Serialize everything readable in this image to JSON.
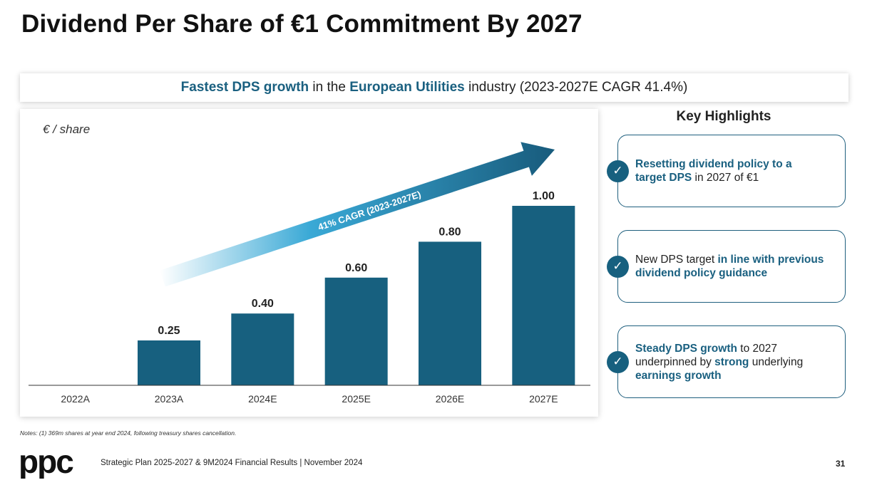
{
  "page": {
    "title": "Dividend Per Share of €1 Commitment By 2027",
    "banner": {
      "part1": "Fastest DPS growth",
      "part2": " in the ",
      "part3": "European Utilities",
      "part4": " industry (2023-2027E CAGR 41.4%)"
    },
    "notes": "Notes: (1) 369m shares at year end 2024, following treasury shares cancellation.",
    "footer": "Strategic Plan 2025-2027 & 9M2024 Financial Results | November 2024",
    "page_number": "31",
    "logo_text": "ppc"
  },
  "highlights": {
    "title": "Key Highlights",
    "check_glyph": "✓",
    "card1": {
      "b1": "Resetting dividend policy to a",
      "b2": "target DPS",
      "t1": " in 2027 of €1"
    },
    "card2": {
      "t1": "New DPS target ",
      "b1": "in line with previous",
      "b2": "dividend policy guidance"
    },
    "card3": {
      "b1": "Steady DPS growth",
      "t1": " to 2027",
      "t2": "underpinned by ",
      "b2": "strong",
      "t3": " underlying",
      "b3": "earnings growth"
    }
  },
  "chart_data": {
    "type": "bar",
    "title": "",
    "ylabel": "€ / share",
    "xlabel": "",
    "categories": [
      "2022A",
      "2023A",
      "2024E",
      "2025E",
      "2026E",
      "2027E"
    ],
    "values": [
      null,
      0.25,
      0.4,
      0.6,
      0.8,
      1.0
    ],
    "value_labels": [
      "",
      "0.25",
      "0.40",
      "0.60",
      "0.80",
      "1.00"
    ],
    "ylim": [
      0,
      1.0
    ],
    "grid": false,
    "annotation": "41% CAGR (2023-2027E)",
    "colors": {
      "bar": "#17607f",
      "arrow_start": "#ffffff",
      "arrow_light": "#3aa9d6",
      "arrow_end": "#185b7c"
    }
  }
}
